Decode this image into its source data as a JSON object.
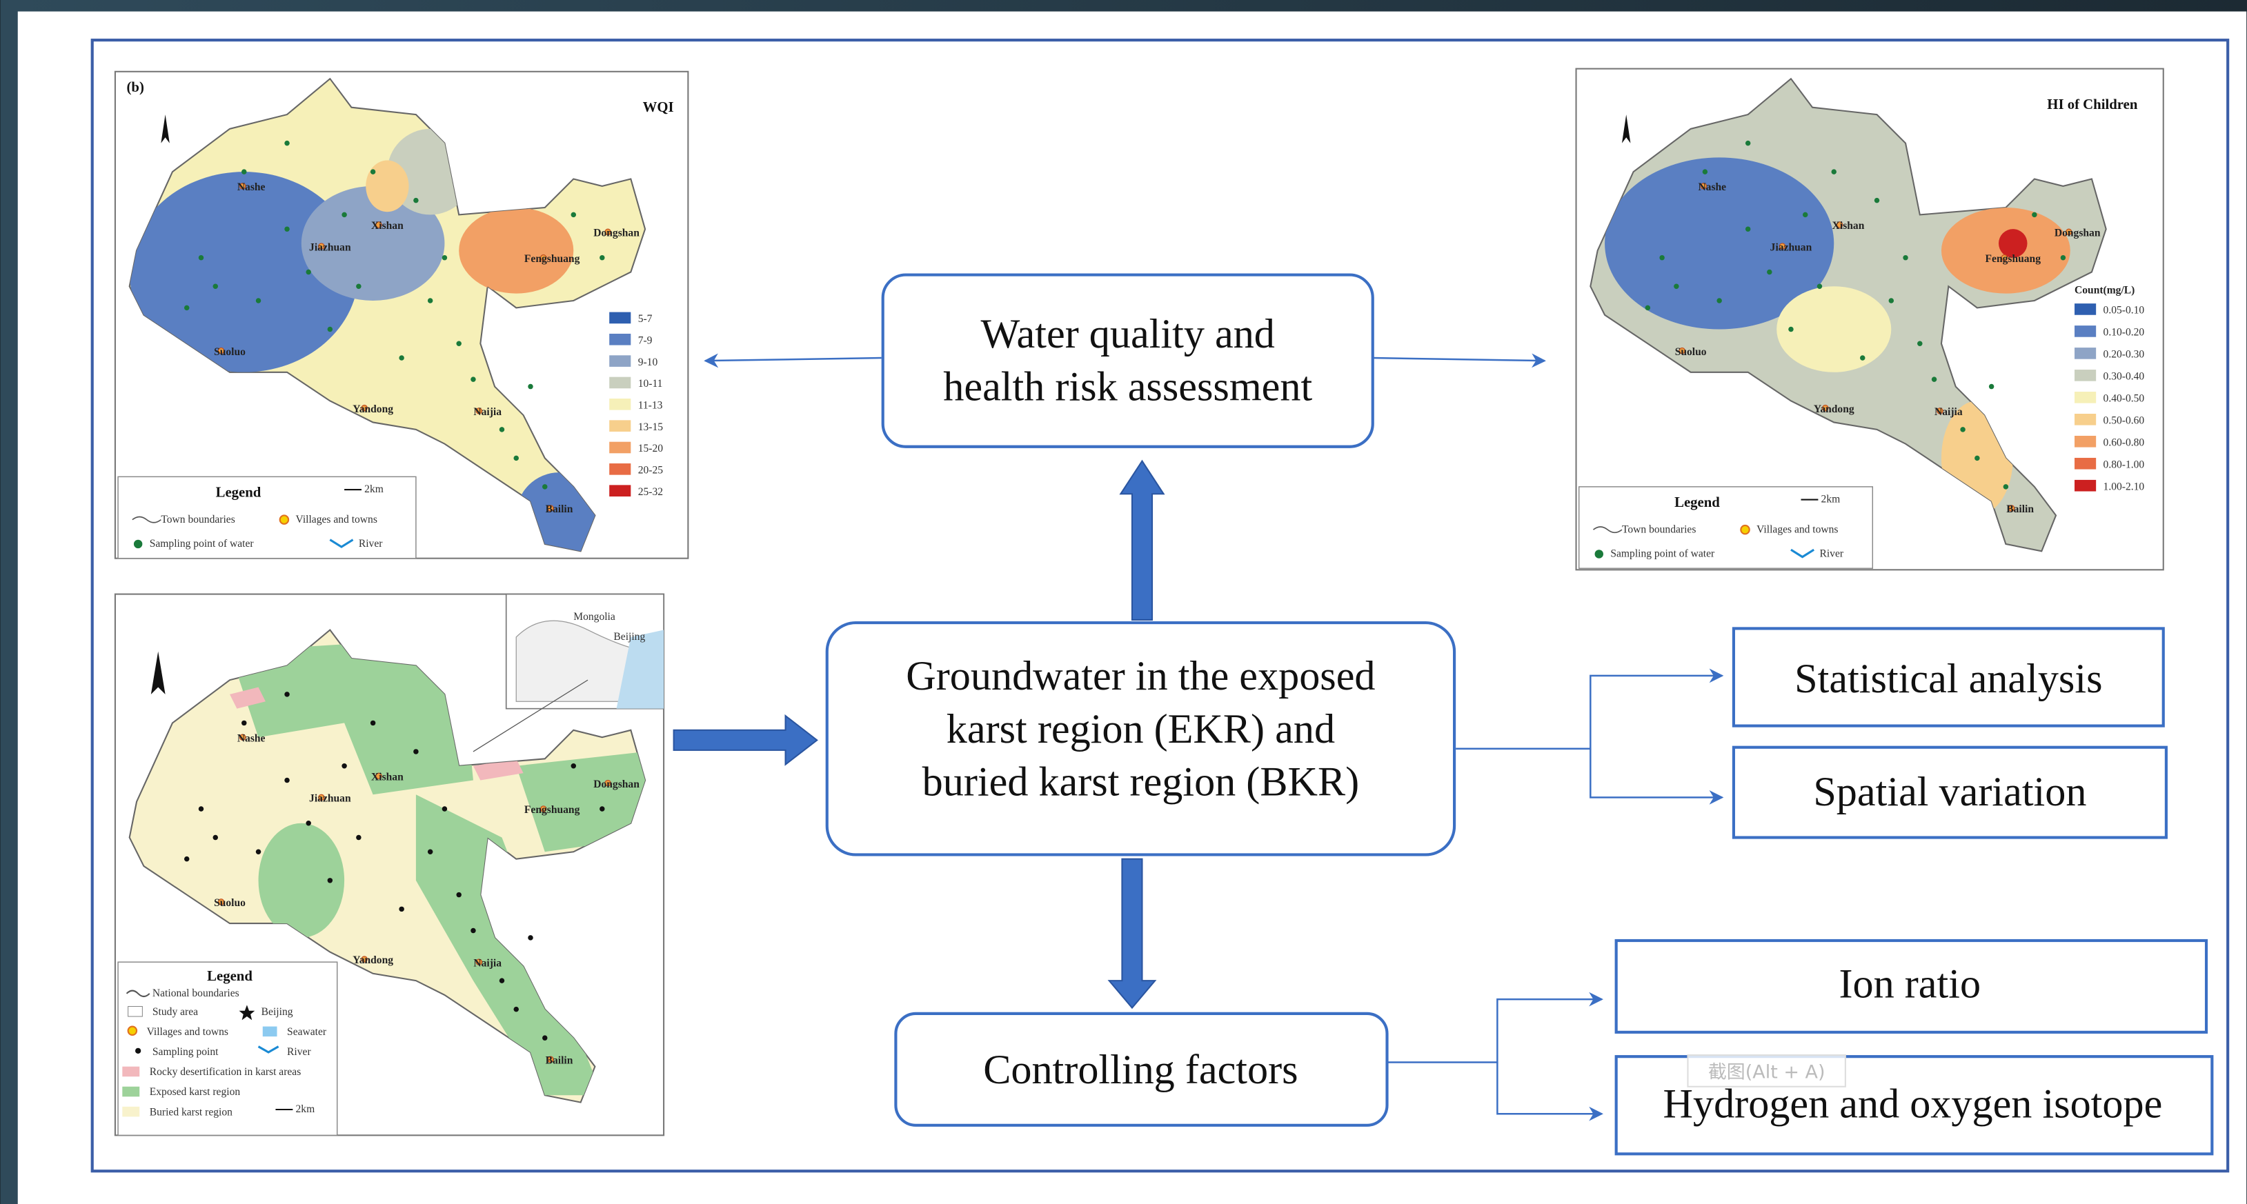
{
  "maps": [
    {
      "label": "(b)",
      "title": "WQI",
      "legend_title": "Legend",
      "scale": "2km",
      "legend": [
        "Town boundaries",
        "Villages and towns",
        "Sampling point of water",
        "River"
      ],
      "classes": [
        "5-7",
        "7-9",
        "9-10",
        "10-11",
        "11-13",
        "13-15",
        "15-20",
        "20-25",
        "25-32"
      ],
      "places": [
        "Nashe",
        "Xishan",
        "Jiazhuan",
        "Dongshan",
        "Fengshuang",
        "Suoluo",
        "Yandong",
        "Naijia",
        "Bailin"
      ]
    },
    {
      "title": "HI of Children",
      "legend_title": "Legend",
      "classes_title": "Count(mg/L)",
      "scale": "2km",
      "legend": [
        "Town boundaries",
        "Villages and towns",
        "Sampling point of water",
        "River"
      ],
      "classes": [
        "0.05-0.10",
        "0.10-0.20",
        "0.20-0.30",
        "0.30-0.40",
        "0.40-0.50",
        "0.50-0.60",
        "0.60-0.80",
        "0.80-1.00",
        "1.00-2.10"
      ],
      "places": [
        "Nashe",
        "Xishan",
        "Jiazhuan",
        "Dongshan",
        "Fengshuang",
        "Suoluo",
        "Yandong",
        "Naijia",
        "Bailin"
      ]
    },
    {
      "legend_title": "Legend",
      "scale": "2km",
      "legend": [
        "National boundaries",
        "Beijing",
        "Study area",
        "Villages and towns",
        "Seawater",
        "Sampling point",
        "River",
        "Rocky desertification in karst areas",
        "Exposed karst region",
        "Buried karst region"
      ],
      "inset": [
        "Mongolia",
        "Beijing"
      ],
      "places": [
        "Nashe",
        "Xishan",
        "Jiazhuan",
        "Dongshan",
        "Fengshuang",
        "Suoluo",
        "Yandong",
        "Naijia",
        "Bailin"
      ]
    }
  ],
  "class_colors": [
    "#2e5fb0",
    "#5a7fc2",
    "#8ea4c6",
    "#c9cfbe",
    "#f6f0b8",
    "#f7cf8c",
    "#f2a065",
    "#e86c44",
    "#cc2020"
  ],
  "boxes": {
    "assessment": [
      "Water quality and",
      "health risk assessment"
    ],
    "groundwater": [
      "Groundwater in the exposed",
      "karst region (EKR) and",
      "buried karst region (BKR)"
    ],
    "controlling": [
      "Controlling factors"
    ],
    "statistical": [
      "Statistical analysis"
    ],
    "spatial": [
      "Spatial variation"
    ],
    "ion": [
      "Ion ratio"
    ],
    "isotope": [
      "Hydrogen and oxygen isotope"
    ]
  },
  "watermark": "截图(Alt + A)"
}
